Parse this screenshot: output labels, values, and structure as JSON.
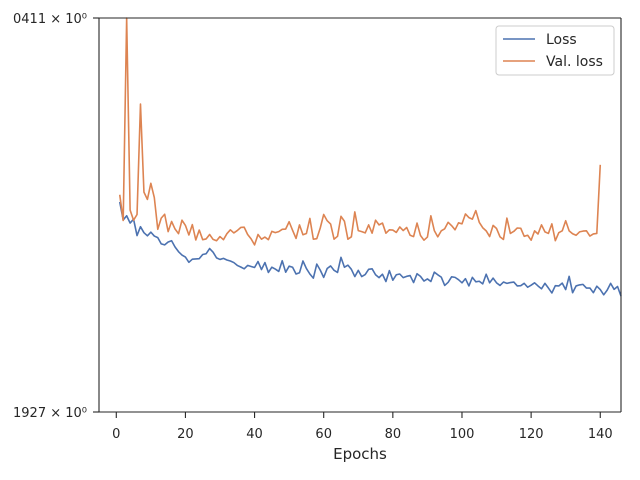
{
  "chart_data": {
    "type": "line",
    "title": "",
    "xlabel": "Epochs",
    "ylabel": "",
    "xlim": [
      -5,
      146
    ],
    "ylim": [
      0.1927,
      0.0411
    ],
    "x_ticks": [
      0,
      20,
      40,
      60,
      80,
      100,
      120,
      140
    ],
    "y_tick_labels": [
      "0411 × 10⁰",
      "1927 × 10⁰"
    ],
    "grid": false,
    "legend_position": "upper right",
    "series": [
      {
        "name": "Loss",
        "color": "#4c72b0",
        "x_start": 1,
        "values": [
          0.1119,
          0.1188,
          0.1172,
          0.12,
          0.1185,
          0.1248,
          0.1214,
          0.1237,
          0.1249,
          0.1235,
          0.125,
          0.1256,
          0.128,
          0.1284,
          0.1273,
          0.1268,
          0.1292,
          0.131,
          0.1323,
          0.1331,
          0.1351,
          0.1339,
          0.1338,
          0.1337,
          0.1321,
          0.1318,
          0.1298,
          0.1312,
          0.1334,
          0.134,
          0.1336,
          0.1342,
          0.1346,
          0.1352,
          0.1363,
          0.1369,
          0.1376,
          0.1363,
          0.1367,
          0.1371,
          0.1348,
          0.1379,
          0.1352,
          0.139,
          0.137,
          0.1377,
          0.1386,
          0.1345,
          0.1389,
          0.1366,
          0.137,
          0.1396,
          0.1391,
          0.1346,
          0.1375,
          0.1396,
          0.1412,
          0.1358,
          0.1381,
          0.1409,
          0.1375,
          0.1365,
          0.1382,
          0.139,
          0.1332,
          0.137,
          0.1362,
          0.1378,
          0.1406,
          0.1382,
          0.1406,
          0.1398,
          0.1378,
          0.1376,
          0.1399,
          0.141,
          0.1397,
          0.1425,
          0.1383,
          0.142,
          0.1399,
          0.1396,
          0.141,
          0.1405,
          0.1402,
          0.1429,
          0.1395,
          0.1405,
          0.1423,
          0.1415,
          0.1425,
          0.1389,
          0.1399,
          0.1408,
          0.144,
          0.1428,
          0.1407,
          0.1409,
          0.1418,
          0.143,
          0.1414,
          0.1442,
          0.1409,
          0.1426,
          0.1424,
          0.1434,
          0.1397,
          0.143,
          0.1412,
          0.143,
          0.144,
          0.1427,
          0.1432,
          0.1429,
          0.1427,
          0.1442,
          0.1441,
          0.1432,
          0.1447,
          0.1439,
          0.143,
          0.1442,
          0.1453,
          0.1432,
          0.145,
          0.1469,
          0.1441,
          0.1442,
          0.1431,
          0.1456,
          0.1405,
          0.1468,
          0.1442,
          0.1438,
          0.1436,
          0.145,
          0.145,
          0.1468,
          0.1443,
          0.1456,
          0.1476,
          0.1458,
          0.1432,
          0.1455,
          0.1444,
          0.1481
        ]
      },
      {
        "name": "Val. loss",
        "color": "#dd8452",
        "x_start": 1,
        "values": [
          0.1091,
          0.119,
          0.0411,
          0.115,
          0.1189,
          0.1167,
          0.0742,
          0.1081,
          0.1109,
          0.1047,
          0.1102,
          0.1224,
          0.1181,
          0.1166,
          0.1233,
          0.1194,
          0.1223,
          0.1241,
          0.1189,
          0.1209,
          0.1246,
          0.1206,
          0.1265,
          0.1227,
          0.1264,
          0.1261,
          0.1244,
          0.1263,
          0.1268,
          0.1252,
          0.1264,
          0.1241,
          0.1226,
          0.1238,
          0.1229,
          0.1217,
          0.1216,
          0.1244,
          0.1261,
          0.1284,
          0.1244,
          0.1262,
          0.1254,
          0.1264,
          0.1232,
          0.1237,
          0.1233,
          0.1224,
          0.1223,
          0.1195,
          0.1228,
          0.1259,
          0.1207,
          0.1245,
          0.124,
          0.1182,
          0.1262,
          0.126,
          0.1219,
          0.1167,
          0.1191,
          0.1204,
          0.1262,
          0.1251,
          0.1174,
          0.1193,
          0.1262,
          0.1253,
          0.1157,
          0.1229,
          0.1233,
          0.1238,
          0.1207,
          0.1239,
          0.1189,
          0.1207,
          0.12,
          0.1239,
          0.1226,
          0.1227,
          0.1236,
          0.1215,
          0.1229,
          0.1217,
          0.1247,
          0.1252,
          0.12,
          0.1248,
          0.1266,
          0.1254,
          0.1172,
          0.1229,
          0.1253,
          0.123,
          0.1222,
          0.1197,
          0.121,
          0.1226,
          0.1199,
          0.1203,
          0.1165,
          0.1179,
          0.1185,
          0.1152,
          0.1197,
          0.1218,
          0.123,
          0.1252,
          0.1209,
          0.1221,
          0.1253,
          0.1263,
          0.1181,
          0.124,
          0.1232,
          0.1219,
          0.122,
          0.1251,
          0.1247,
          0.1266,
          0.123,
          0.1242,
          0.1207,
          0.1234,
          0.124,
          0.1203,
          0.1268,
          0.1237,
          0.123,
          0.1191,
          0.123,
          0.1241,
          0.1247,
          0.1234,
          0.1231,
          0.123,
          0.125,
          0.1242,
          0.124,
          0.0976
        ]
      }
    ]
  }
}
